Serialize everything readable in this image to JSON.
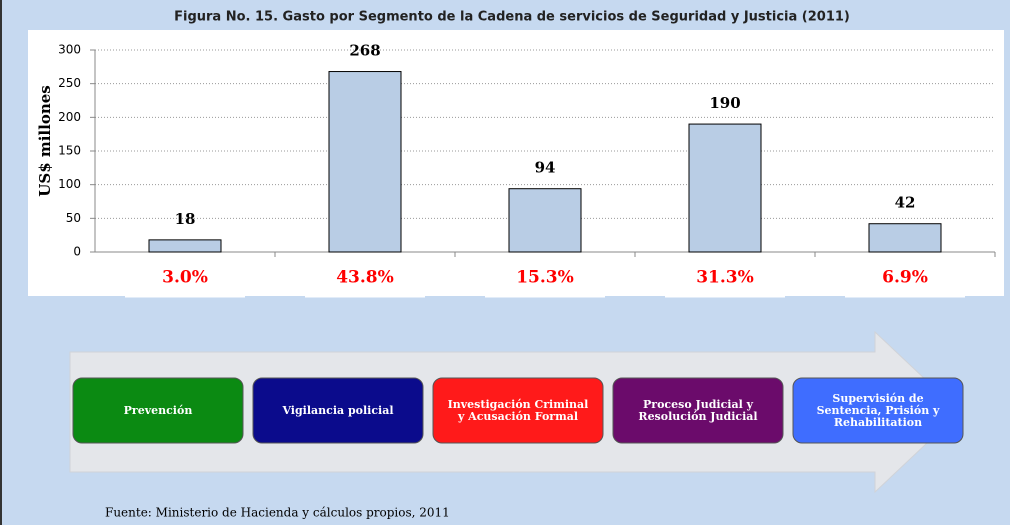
{
  "chart_data": {
    "type": "bar",
    "title": "Figura No. 15. Gasto por Segmento de la Cadena de servicios de Seguridad y Justicia (2011)",
    "y_label": "US$ millones",
    "categories": [
      null,
      null,
      null,
      null,
      null
    ],
    "values": [
      18,
      268,
      94,
      190,
      42
    ],
    "color": "#b9cde5",
    "shares": [
      3.0,
      43.8,
      15.3,
      31.3,
      6.9
    ],
    "share_labels": [
      "3.0%",
      "43.8%",
      "15.3%",
      "31.3%",
      "6.9%"
    ],
    "ylim": [
      0,
      300
    ],
    "yticks": [
      0,
      50,
      100,
      150,
      200,
      250,
      300
    ],
    "grid": true
  },
  "stages": [
    {
      "lines": [
        "Prevención"
      ],
      "color": "#0b8a12"
    },
    {
      "lines": [
        "Vigilancia policial"
      ],
      "color": "#0b0b8c"
    },
    {
      "lines": [
        "Investigación Criminal",
        "y Acusación Formal"
      ],
      "color": "#ff1a1a"
    },
    {
      "lines": [
        "Proceso Judicial y",
        "Resolución Judicial"
      ],
      "color": "#6b0b6b"
    },
    {
      "lines": [
        "Supervisión de",
        "Sentencia, Prisión y",
        "Rehabilitation"
      ],
      "color": "#3f6dff"
    }
  ],
  "source": "Fuente: Ministerio de Hacienda y cálculos propios, 2011"
}
